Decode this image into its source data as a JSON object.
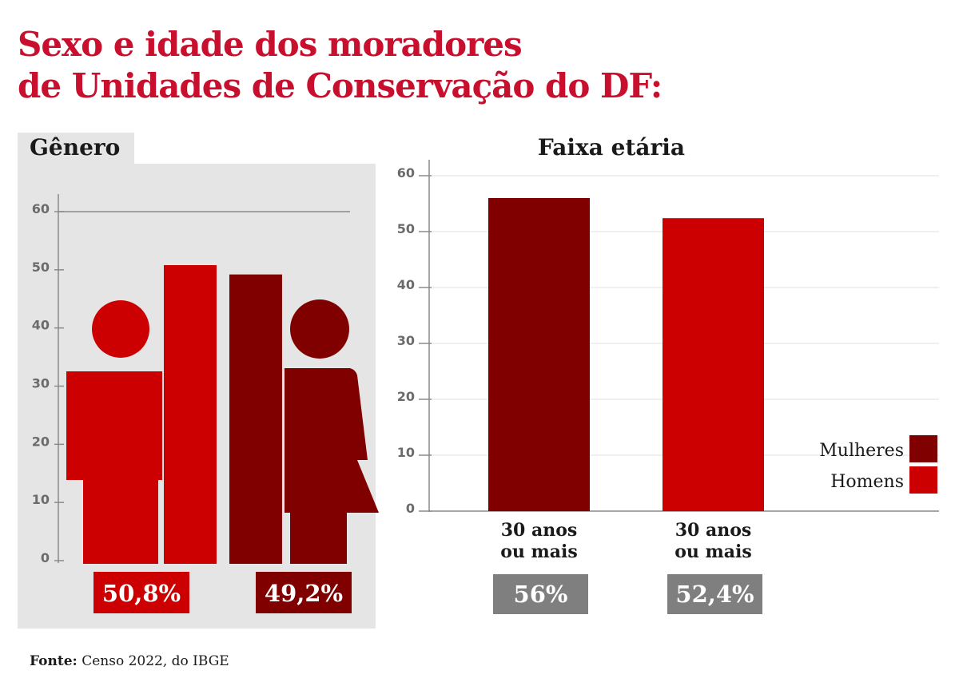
{
  "title_lines": [
    "Sexo e idade dos moradores",
    "de Unidades de Conservação do DF:"
  ],
  "source": {
    "label": "Fonte:",
    "text": "Censo 2022, do IBGE"
  },
  "colors": {
    "mulheres": "#800000",
    "homens": "#cc0000",
    "value_box_gray": "#7f7f7f",
    "title": "#c8102e"
  },
  "icons": [
    "man-icon",
    "woman-icon"
  ],
  "chart_data": [
    {
      "type": "bar",
      "title": "Gênero",
      "categories": [
        "Homens",
        "Mulheres"
      ],
      "values": [
        50.8,
        49.2
      ],
      "value_labels": [
        "50,8%",
        "49,2%"
      ],
      "ylim": [
        0,
        60
      ],
      "yticks": [
        0,
        10,
        20,
        30,
        40,
        50,
        60
      ],
      "grid": false
    },
    {
      "type": "bar",
      "title": "Faixa etária",
      "categories": [
        "30 anos\nou mais",
        "30 anos\nou mais"
      ],
      "series": [
        {
          "name": "Mulheres",
          "values": [
            56,
            null
          ]
        },
        {
          "name": "Homens",
          "values": [
            null,
            52.4
          ]
        }
      ],
      "value_labels": [
        "56%",
        "52,4%"
      ],
      "ylim": [
        0,
        60
      ],
      "yticks": [
        0,
        10,
        20,
        30,
        40,
        50,
        60
      ],
      "grid": true,
      "legend": "right"
    }
  ]
}
